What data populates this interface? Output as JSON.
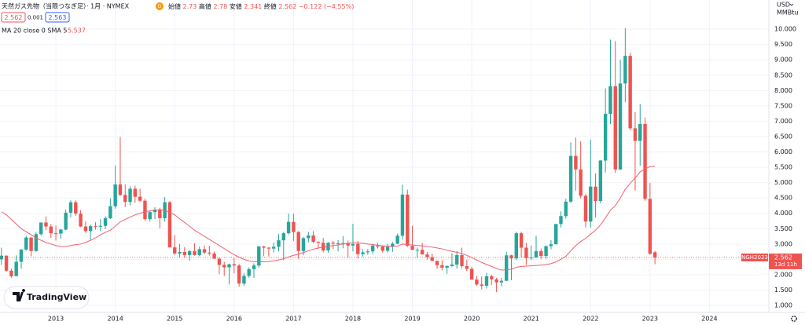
{
  "chart_data": {
    "type": "candlestick",
    "title": "天然ガス先物（当限つなぎ足）· 1月 · NYMEX",
    "badge": "D",
    "ohlc_labels": [
      "始値",
      "高値",
      "安値",
      "終値"
    ],
    "change": "−0.122 (−4.55%)",
    "bid": 2.562,
    "spread": 0.001,
    "ask": 2.563,
    "currency": "USD",
    "unit": "MMBtu",
    "contract": "NGH2023",
    "countdown": "13d 11h",
    "watermark": "TradingView",
    "up_color": "#26a69a",
    "down_color": "#ef5350",
    "grid": true,
    "x": [
      "2012-02",
      "2012-03",
      "2012-04",
      "2012-05",
      "2012-06",
      "2012-07",
      "2012-08",
      "2012-09",
      "2012-10",
      "2012-11",
      "2012-12",
      "2013-01",
      "2013-02",
      "2013-03",
      "2013-04",
      "2013-05",
      "2013-06",
      "2013-07",
      "2013-08",
      "2013-09",
      "2013-10",
      "2013-11",
      "2013-12",
      "2014-01",
      "2014-02",
      "2014-03",
      "2014-04",
      "2014-05",
      "2014-06",
      "2014-07",
      "2014-08",
      "2014-09",
      "2014-10",
      "2014-11",
      "2014-12",
      "2015-01",
      "2015-02",
      "2015-03",
      "2015-04",
      "2015-05",
      "2015-06",
      "2015-07",
      "2015-08",
      "2015-09",
      "2015-10",
      "2015-11",
      "2015-12",
      "2016-01",
      "2016-02",
      "2016-03",
      "2016-04",
      "2016-05",
      "2016-06",
      "2016-07",
      "2016-08",
      "2016-09",
      "2016-10",
      "2016-11",
      "2016-12",
      "2017-01",
      "2017-02",
      "2017-03",
      "2017-04",
      "2017-05",
      "2017-06",
      "2017-07",
      "2017-08",
      "2017-09",
      "2017-10",
      "2017-11",
      "2017-12",
      "2018-01",
      "2018-02",
      "2018-03",
      "2018-04",
      "2018-05",
      "2018-06",
      "2018-07",
      "2018-08",
      "2018-09",
      "2018-10",
      "2018-11",
      "2018-12",
      "2019-01",
      "2019-02",
      "2019-03",
      "2019-04",
      "2019-05",
      "2019-06",
      "2019-07",
      "2019-08",
      "2019-09",
      "2019-10",
      "2019-11",
      "2019-12",
      "2020-01",
      "2020-02",
      "2020-03",
      "2020-04",
      "2020-05",
      "2020-06",
      "2020-07",
      "2020-08",
      "2020-09",
      "2020-10",
      "2020-11",
      "2020-12",
      "2021-01",
      "2021-02",
      "2021-03",
      "2021-04",
      "2021-05",
      "2021-06",
      "2021-07",
      "2021-08",
      "2021-09",
      "2021-10",
      "2021-11",
      "2021-12",
      "2022-01",
      "2022-02",
      "2022-03",
      "2022-04",
      "2022-05",
      "2022-06",
      "2022-07",
      "2022-08",
      "2022-09",
      "2022-10",
      "2022-11",
      "2022-12",
      "2023-01",
      "2023-02"
    ],
    "open": [
      2.5,
      2.62,
      2.13,
      1.95,
      2.42,
      2.82,
      3.21,
      2.77,
      3.32,
      3.7,
      3.57,
      3.35,
      3.34,
      3.47,
      4.02,
      4.36,
      3.99,
      3.57,
      3.42,
      3.58,
      3.56,
      3.59,
      3.84,
      4.23,
      4.94,
      4.6,
      4.37,
      4.8,
      4.54,
      4.41,
      3.81,
      4.04,
      4.12,
      3.84,
      4.36,
      2.89,
      2.69,
      2.74,
      2.64,
      2.77,
      2.64,
      2.83,
      2.72,
      2.69,
      2.52,
      2.32,
      2.24,
      2.34,
      2.3,
      1.71,
      1.96,
      2.18,
      2.3,
      2.92,
      2.88,
      2.85,
      2.91,
      3.12,
      3.35,
      3.72,
      3.39,
      2.77,
      3.19,
      3.28,
      3.07,
      3.04,
      2.79,
      3.04,
      3.01,
      3.02,
      3.03,
      2.95,
      3.0,
      2.67,
      2.73,
      2.76,
      2.95,
      2.92,
      2.78,
      2.91,
      3.01,
      3.27,
      4.61,
      2.94,
      2.81,
      2.81,
      2.66,
      2.57,
      2.45,
      2.31,
      2.23,
      2.28,
      2.33,
      2.64,
      2.28,
      2.19,
      1.84,
      1.68,
      1.64,
      1.95,
      1.85,
      1.75,
      1.8,
      2.63,
      2.53,
      3.35,
      2.88,
      2.54,
      2.56,
      2.77,
      2.61,
      2.93,
      2.99,
      3.65,
      3.91,
      4.38,
      5.87,
      5.43,
      4.57,
      3.73,
      4.87,
      4.4,
      5.72,
      7.24,
      8.14,
      5.43,
      8.23,
      9.13,
      6.77,
      6.36,
      6.91,
      4.47,
      2.73
    ],
    "high": [
      2.88,
      2.63,
      2.2,
      2.63,
      2.83,
      3.27,
      3.22,
      3.38,
      3.7,
      3.9,
      3.65,
      3.6,
      3.49,
      4.12,
      4.42,
      4.42,
      4.1,
      3.74,
      3.63,
      3.71,
      3.81,
      3.9,
      4.49,
      5.56,
      6.49,
      4.94,
      4.88,
      4.9,
      4.8,
      4.47,
      4.09,
      4.2,
      4.18,
      4.53,
      4.4,
      3.29,
      3.0,
      2.9,
      2.8,
      3.02,
      2.91,
      2.95,
      2.94,
      2.76,
      2.57,
      2.42,
      2.36,
      2.54,
      2.35,
      2.04,
      2.24,
      2.37,
      2.94,
      2.94,
      2.9,
      3.05,
      3.33,
      3.39,
      3.99,
      3.99,
      3.42,
      3.23,
      3.4,
      3.42,
      3.09,
      3.2,
      3.06,
      3.1,
      3.13,
      3.26,
      3.11,
      3.66,
      3.1,
      2.83,
      2.84,
      3.0,
      3.03,
      2.93,
      3.0,
      3.07,
      3.34,
      4.93,
      4.77,
      3.59,
      2.88,
      3.04,
      2.74,
      2.69,
      2.46,
      2.47,
      2.31,
      2.7,
      2.77,
      2.88,
      2.49,
      2.26,
      1.96,
      1.94,
      2.06,
      2.0,
      1.9,
      1.9,
      2.74,
      2.65,
      3.4,
      3.4,
      3.04,
      2.95,
      3.27,
      2.85,
      2.95,
      3.13,
      3.66,
      4.06,
      4.47,
      6.31,
      6.47,
      6.34,
      4.63,
      6.4,
      5.3,
      5.74,
      8.07,
      9.66,
      9.61,
      9.01,
      10.03,
      9.23,
      7.3,
      7.56,
      7.12,
      4.99,
      2.78
    ],
    "low": [
      2.32,
      2.1,
      1.9,
      1.95,
      2.19,
      2.78,
      2.6,
      2.75,
      3.27,
      3.45,
      3.2,
      3.11,
      3.17,
      3.45,
      3.87,
      3.92,
      3.55,
      3.36,
      3.15,
      3.47,
      3.42,
      3.48,
      3.81,
      4.15,
      4.56,
      4.2,
      4.26,
      4.35,
      4.37,
      3.75,
      3.73,
      3.81,
      3.51,
      3.73,
      2.88,
      2.65,
      2.56,
      2.55,
      2.45,
      2.62,
      2.6,
      2.68,
      2.62,
      2.52,
      2.02,
      1.96,
      1.68,
      2.04,
      1.61,
      1.64,
      1.9,
      1.9,
      2.23,
      2.6,
      2.59,
      2.72,
      2.76,
      2.47,
      3.31,
      3.1,
      2.52,
      2.63,
      3.05,
      3.03,
      2.83,
      2.73,
      2.72,
      2.84,
      2.76,
      2.86,
      2.56,
      2.76,
      2.53,
      2.59,
      2.65,
      2.67,
      2.85,
      2.72,
      2.72,
      2.74,
      2.99,
      3.14,
      2.9,
      2.8,
      2.55,
      2.66,
      2.49,
      2.45,
      2.19,
      2.14,
      2.03,
      2.26,
      2.2,
      2.21,
      2.12,
      1.84,
      1.64,
      1.52,
      1.55,
      1.66,
      1.43,
      1.62,
      1.8,
      1.82,
      2.47,
      2.56,
      2.32,
      2.48,
      2.55,
      2.51,
      2.52,
      2.83,
      2.99,
      3.54,
      3.83,
      4.34,
      4.74,
      4.49,
      3.54,
      3.53,
      3.86,
      4.33,
      5.33,
      6.91,
      5.32,
      5.41,
      7.62,
      6.71,
      4.74,
      5.55,
      4.41,
      2.65,
      2.341
    ],
    "close": [
      2.62,
      2.13,
      1.95,
      2.42,
      2.82,
      3.21,
      2.77,
      3.32,
      3.7,
      3.57,
      3.35,
      3.34,
      3.47,
      4.02,
      4.36,
      3.99,
      3.57,
      3.42,
      3.58,
      3.56,
      3.59,
      3.84,
      4.23,
      4.94,
      4.6,
      4.37,
      4.8,
      4.54,
      4.41,
      3.81,
      4.04,
      4.12,
      3.84,
      4.36,
      2.89,
      2.69,
      2.74,
      2.64,
      2.77,
      2.64,
      2.83,
      2.72,
      2.69,
      2.52,
      2.32,
      2.24,
      2.34,
      2.3,
      1.71,
      1.96,
      2.18,
      2.3,
      2.92,
      2.88,
      2.85,
      2.91,
      3.12,
      3.35,
      3.72,
      3.39,
      2.77,
      3.19,
      3.28,
      3.07,
      3.04,
      2.79,
      3.04,
      3.01,
      3.02,
      3.03,
      2.95,
      3.0,
      2.67,
      2.73,
      2.76,
      2.95,
      2.92,
      2.78,
      2.91,
      3.01,
      3.27,
      4.61,
      2.94,
      2.81,
      2.81,
      2.66,
      2.57,
      2.45,
      2.31,
      2.23,
      2.28,
      2.33,
      2.64,
      2.28,
      2.19,
      1.84,
      1.68,
      1.64,
      1.95,
      1.85,
      1.75,
      1.8,
      2.63,
      2.53,
      3.35,
      2.88,
      2.54,
      2.56,
      2.77,
      2.61,
      2.93,
      2.99,
      3.65,
      3.91,
      4.38,
      5.87,
      5.43,
      4.57,
      3.73,
      4.87,
      4.4,
      5.72,
      7.24,
      8.14,
      5.43,
      8.23,
      9.13,
      6.77,
      6.36,
      6.91,
      4.47,
      2.68,
      2.562
    ],
    "ma": {
      "name": "MA 20 close 0 SMA 5",
      "color": "#f0606e",
      "values": [
        4.05,
        3.95,
        3.8,
        3.65,
        3.5,
        3.4,
        3.3,
        3.2,
        3.12,
        3.05,
        3.0,
        2.95,
        2.92,
        2.92,
        2.95,
        2.98,
        3.0,
        3.05,
        3.12,
        3.2,
        3.3,
        3.38,
        3.45,
        3.58,
        3.72,
        3.8,
        3.88,
        3.95,
        4.0,
        4.05,
        4.08,
        4.1,
        4.12,
        4.1,
        4.03,
        3.95,
        3.82,
        3.7,
        3.58,
        3.45,
        3.35,
        3.25,
        3.15,
        3.05,
        2.95,
        2.85,
        2.75,
        2.65,
        2.57,
        2.5,
        2.45,
        2.42,
        2.42,
        2.42,
        2.43,
        2.45,
        2.48,
        2.52,
        2.58,
        2.63,
        2.67,
        2.72,
        2.78,
        2.83,
        2.87,
        2.9,
        2.92,
        2.95,
        2.97,
        3.0,
        3.02,
        3.04,
        3.03,
        3.02,
        3.0,
        2.98,
        2.96,
        2.94,
        2.93,
        2.92,
        2.93,
        3.0,
        2.98,
        2.97,
        2.95,
        2.94,
        2.92,
        2.9,
        2.87,
        2.84,
        2.8,
        2.76,
        2.73,
        2.69,
        2.63,
        2.56,
        2.48,
        2.4,
        2.33,
        2.27,
        2.2,
        2.15,
        2.16,
        2.18,
        2.24,
        2.27,
        2.28,
        2.29,
        2.3,
        2.31,
        2.33,
        2.36,
        2.42,
        2.5,
        2.6,
        2.78,
        2.95,
        3.08,
        3.18,
        3.32,
        3.45,
        3.62,
        3.85,
        4.1,
        4.25,
        4.5,
        4.78,
        4.98,
        5.15,
        5.35,
        5.45,
        5.52,
        5.537
      ]
    },
    "xlim": [
      "2012-01",
      "2025-01"
    ],
    "xticks": [
      "2013",
      "2014",
      "2015",
      "2016",
      "2017",
      "2018",
      "2019",
      "2020",
      "2021",
      "2022",
      "2023",
      "2024"
    ],
    "ylim": [
      0.77,
      10.95
    ],
    "yticks": [
      {
        "value": 1,
        "label": "1.000"
      },
      {
        "value": 1.5,
        "label": "1.500"
      },
      {
        "value": 2,
        "label": "2.000"
      },
      {
        "value": 2.5,
        "label": "2.500"
      },
      {
        "value": 3,
        "label": "3.000"
      },
      {
        "value": 3.5,
        "label": "3.500"
      },
      {
        "value": 4,
        "label": "4.000"
      },
      {
        "value": 4.5,
        "label": "4.500"
      },
      {
        "value": 5,
        "label": "5.000"
      },
      {
        "value": 5.5,
        "label": "5.500"
      },
      {
        "value": 6,
        "label": "6.000"
      },
      {
        "value": 6.5,
        "label": "6.500"
      },
      {
        "value": 7,
        "label": "7.000"
      },
      {
        "value": 7.5,
        "label": "7.500"
      },
      {
        "value": 8,
        "label": "8.000"
      },
      {
        "value": 8.5,
        "label": "8.500"
      },
      {
        "value": 9,
        "label": "9.000"
      },
      {
        "value": 9.5,
        "label": "9.500"
      },
      {
        "value": 10,
        "label": "10.000"
      }
    ]
  }
}
